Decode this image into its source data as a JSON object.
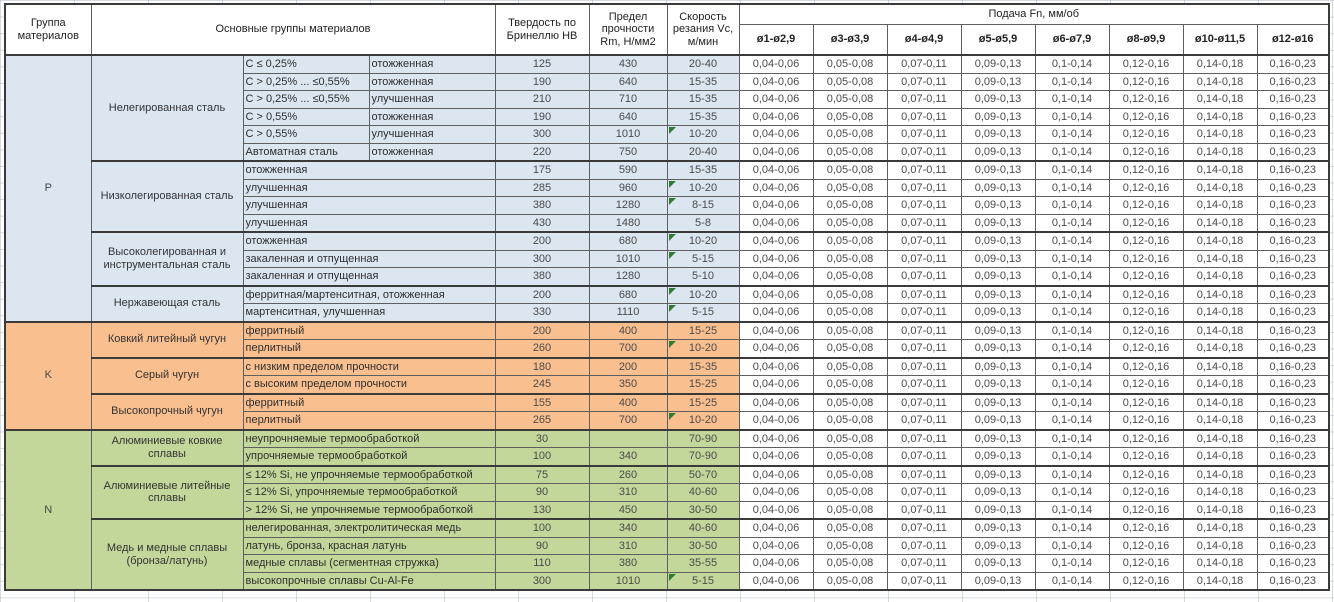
{
  "header": {
    "col_group": "Группа материалов",
    "col_main_groups": "Основные группы материалов",
    "col_hardness": "Твердость по Бринеллю НВ",
    "col_strength": "Предел прочности Rm, Н/мм2",
    "col_speed": "Скорость резания Vc, м/мин",
    "feed_title": "Подача Fn, мм/об",
    "feed_cols": [
      "ø1-ø2,9",
      "ø3-ø3,9",
      "ø4-ø4,9",
      "ø5-ø5,9",
      "ø6-ø7,9",
      "ø8-ø9,9",
      "ø10-ø11,5",
      "ø12-ø16"
    ]
  },
  "feed_values": [
    "0,04-0,06",
    "0,05-0,08",
    "0,07-0,11",
    "0,09-0,13",
    "0,1-0,14",
    "0,12-0,16",
    "0,14-0,18",
    "0,16-0,23"
  ],
  "indicator_color": "#2e7d32",
  "groups": [
    {
      "letter": "P",
      "color": "#dce6f1",
      "subgroups": [
        {
          "name": "Нелегированная сталь",
          "rows": [
            {
              "desc1": "C ≤ 0,25%",
              "desc2": "отожженная",
              "hb": "125",
              "rm": "430",
              "vc": "20-40",
              "flag": false
            },
            {
              "desc1": "C > 0,25% ... ≤0,55%",
              "desc2": "отожженная",
              "hb": "190",
              "rm": "640",
              "vc": "15-35",
              "flag": false
            },
            {
              "desc1": "C > 0,25% ... ≤0,55%",
              "desc2": "улучшенная",
              "hb": "210",
              "rm": "710",
              "vc": "15-35",
              "flag": false
            },
            {
              "desc1": "C > 0,55%",
              "desc2": "отожженная",
              "hb": "190",
              "rm": "640",
              "vc": "15-35",
              "flag": false
            },
            {
              "desc1": "C > 0,55%",
              "desc2": "улучшенная",
              "hb": "300",
              "rm": "1010",
              "vc": "10-20",
              "flag": true
            },
            {
              "desc1": "Автоматная сталь",
              "desc2": "отожженная",
              "hb": "220",
              "rm": "750",
              "vc": "20-40",
              "flag": false
            }
          ]
        },
        {
          "name": "Низколегированная сталь",
          "rows": [
            {
              "desc": "отожженная",
              "hb": "175",
              "rm": "590",
              "vc": "15-35",
              "flag": false
            },
            {
              "desc": "улучшенная",
              "hb": "285",
              "rm": "960",
              "vc": "10-20",
              "flag": true
            },
            {
              "desc": "улучшенная",
              "hb": "380",
              "rm": "1280",
              "vc": "8-15",
              "flag": true
            },
            {
              "desc": "улучшенная",
              "hb": "430",
              "rm": "1480",
              "vc": "5-8",
              "flag": false
            }
          ]
        },
        {
          "name": "Высоколегированная и инструментальная сталь",
          "rows": [
            {
              "desc": "отожженная",
              "hb": "200",
              "rm": "680",
              "vc": "10-20",
              "flag": true
            },
            {
              "desc": "закаленная и отпущенная",
              "hb": "300",
              "rm": "1010",
              "vc": "5-15",
              "flag": true
            },
            {
              "desc": "закаленная и отпущенная",
              "hb": "380",
              "rm": "1280",
              "vc": "5-10",
              "flag": false
            }
          ]
        },
        {
          "name": "Нержавеющая сталь",
          "rows": [
            {
              "desc": "ферритная/мартенситная, отожженная",
              "hb": "200",
              "rm": "680",
              "vc": "10-20",
              "flag": true
            },
            {
              "desc": "мартенситная, улучшенная",
              "hb": "330",
              "rm": "1110",
              "vc": "5-15",
              "flag": true
            }
          ]
        }
      ]
    },
    {
      "letter": "K",
      "color": "#fabf8f",
      "subgroups": [
        {
          "name": "Ковкий литейный чугун",
          "rows": [
            {
              "desc": "ферритный",
              "hb": "200",
              "rm": "400",
              "vc": "15-25",
              "flag": false
            },
            {
              "desc": "перлитный",
              "hb": "260",
              "rm": "700",
              "vc": "10-20",
              "flag": true
            }
          ]
        },
        {
          "name": "Серый чугун",
          "rows": [
            {
              "desc": "с низким пределом прочности",
              "hb": "180",
              "rm": "200",
              "vc": "15-35",
              "flag": false
            },
            {
              "desc": "с высоким пределом прочности",
              "hb": "245",
              "rm": "350",
              "vc": "15-25",
              "flag": false
            }
          ]
        },
        {
          "name": "Высокопрочный чугун",
          "rows": [
            {
              "desc": "ферритный",
              "hb": "155",
              "rm": "400",
              "vc": "15-25",
              "flag": false
            },
            {
              "desc": "перлитный",
              "hb": "265",
              "rm": "700",
              "vc": "10-20",
              "flag": true
            }
          ]
        }
      ]
    },
    {
      "letter": "N",
      "color": "#c4d79b",
      "subgroups": [
        {
          "name": "Алюминиевые ковкие сплавы",
          "rows": [
            {
              "desc": "неупрочняемые термообработкой",
              "hb": "30",
              "rm": "",
              "vc": "70-90",
              "flag": false
            },
            {
              "desc": "упрочняемые термообработкой",
              "hb": "100",
              "rm": "340",
              "vc": "70-90",
              "flag": false
            }
          ]
        },
        {
          "name": "Алюминиевые литейные сплавы",
          "rows": [
            {
              "desc": "≤ 12% Si, не упрочняемые термообработкой",
              "hb": "75",
              "rm": "260",
              "vc": "50-70",
              "flag": false
            },
            {
              "desc": "≤ 12% Si, упрочняемые термообработкой",
              "hb": "90",
              "rm": "310",
              "vc": "40-60",
              "flag": false
            },
            {
              "desc": "> 12% Si, не упрочняемые термообработкой",
              "hb": "130",
              "rm": "450",
              "vc": "30-50",
              "flag": false
            }
          ]
        },
        {
          "name": "Медь и медные сплавы (бронза/латунь)",
          "rows": [
            {
              "desc": "нелегированная, электролитическая медь",
              "hb": "100",
              "rm": "340",
              "vc": "40-60",
              "flag": false
            },
            {
              "desc": "латунь, бронза, красная латунь",
              "hb": "90",
              "rm": "310",
              "vc": "30-50",
              "flag": false
            },
            {
              "desc": "медные сплавы (сегментная стружка)",
              "hb": "110",
              "rm": "380",
              "vc": "35-55",
              "flag": false
            },
            {
              "desc": "высокопрочные сплавы Cu-Al-Fe",
              "hb": "300",
              "rm": "1010",
              "vc": "5-15",
              "flag": true
            }
          ]
        }
      ]
    }
  ]
}
